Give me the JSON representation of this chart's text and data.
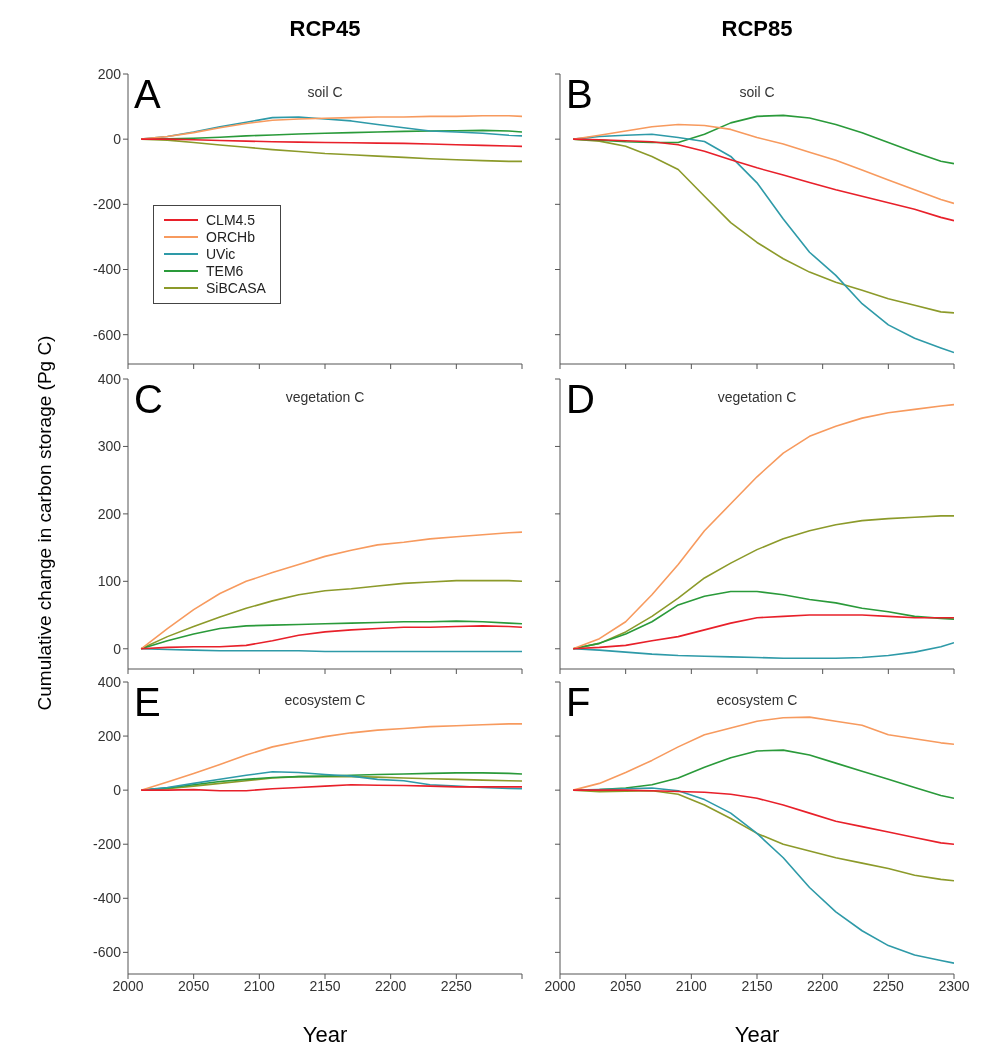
{
  "chart_data": [
    {
      "type": "line",
      "title": "RCP45",
      "subtitle": "soil C",
      "annotations": [
        "A"
      ],
      "legend": "bottom left",
      "tick_labels": "y",
      "x": [
        2010,
        2030,
        2050,
        2070,
        2090,
        2110,
        2130,
        2150,
        2170,
        2190,
        2210,
        2230,
        2250,
        2270,
        2290,
        2300
      ],
      "xlim": [
        2000,
        2300
      ],
      "xticks": [
        2000,
        2050,
        2100,
        2150,
        2200,
        2250,
        2300
      ],
      "ylim": [
        -690,
        200
      ],
      "yticks": [
        200,
        0,
        -200,
        -400,
        -600
      ],
      "series": [
        {
          "name": "CLM4.5",
          "color": "#e8202a",
          "values": [
            0,
            0,
            -2,
            -4,
            -6,
            -8,
            -9,
            -10,
            -11,
            -12,
            -13,
            -15,
            -17,
            -19,
            -21,
            -22
          ]
        },
        {
          "name": "ORCHb",
          "color": "#f79a5e",
          "values": [
            0,
            8,
            20,
            35,
            48,
            58,
            62,
            64,
            66,
            68,
            68,
            70,
            70,
            72,
            72,
            70
          ]
        },
        {
          "name": "UVic",
          "color": "#2e9aa8",
          "values": [
            0,
            8,
            22,
            38,
            52,
            66,
            68,
            62,
            56,
            45,
            35,
            25,
            22,
            18,
            12,
            10
          ]
        },
        {
          "name": "TEM6",
          "color": "#2a9a3a",
          "values": [
            0,
            1,
            3,
            6,
            10,
            13,
            16,
            18,
            20,
            22,
            24,
            25,
            26,
            27,
            25,
            22
          ]
        },
        {
          "name": "SiBCASA",
          "color": "#8c9a2a",
          "values": [
            0,
            -3,
            -10,
            -18,
            -25,
            -32,
            -38,
            -44,
            -48,
            -52,
            -56,
            -60,
            -63,
            -66,
            -68,
            -68
          ]
        }
      ]
    },
    {
      "type": "line",
      "title": "RCP85",
      "subtitle": "soil C",
      "annotations": [
        "B"
      ],
      "tick_labels": false,
      "x": [
        2010,
        2030,
        2050,
        2070,
        2090,
        2110,
        2130,
        2150,
        2170,
        2190,
        2210,
        2230,
        2250,
        2270,
        2290,
        2300
      ],
      "xlim": [
        2000,
        2300
      ],
      "xticks": [
        2000,
        2050,
        2100,
        2150,
        2200,
        2250,
        2300
      ],
      "ylim": [
        -690,
        200
      ],
      "yticks": [
        200,
        0,
        -200,
        -400,
        -600
      ],
      "series": [
        {
          "color": "#e8202a",
          "values": [
            0,
            -2,
            -5,
            -8,
            -17,
            -37,
            -63,
            -88,
            -110,
            -133,
            -155,
            -175,
            -195,
            -215,
            -240,
            -250
          ]
        },
        {
          "color": "#f79a5e",
          "values": [
            0,
            12,
            25,
            38,
            45,
            42,
            30,
            5,
            -15,
            -40,
            -65,
            -95,
            -125,
            -155,
            -185,
            -197
          ]
        },
        {
          "color": "#2e9aa8",
          "values": [
            0,
            8,
            12,
            15,
            5,
            -7,
            -53,
            -134,
            -245,
            -347,
            -418,
            -505,
            -570,
            -611,
            -641,
            -655
          ]
        },
        {
          "color": "#2a9a3a",
          "values": [
            0,
            -3,
            -8,
            -10,
            -10,
            15,
            50,
            70,
            73,
            65,
            45,
            20,
            -10,
            -40,
            -68,
            -75
          ]
        },
        {
          "color": "#8c9a2a",
          "values": [
            0,
            -6,
            -22,
            -53,
            -93,
            -175,
            -256,
            -317,
            -367,
            -408,
            -439,
            -464,
            -490,
            -510,
            -530,
            -533
          ]
        }
      ]
    },
    {
      "type": "line",
      "subtitle": "vegetation C",
      "ylabel": "Cumulative change in carbon storage (Pg C)",
      "annotations": [
        "C"
      ],
      "tick_labels": "y",
      "x": [
        2010,
        2030,
        2050,
        2070,
        2090,
        2110,
        2130,
        2150,
        2170,
        2190,
        2210,
        2230,
        2250,
        2270,
        2290,
        2300
      ],
      "xlim": [
        2000,
        2300
      ],
      "xticks": [
        2000,
        2050,
        2100,
        2150,
        2200,
        2250,
        2300
      ],
      "ylim": [
        -30,
        400
      ],
      "yticks": [
        0,
        100,
        200,
        300,
        400
      ],
      "series": [
        {
          "color": "#e8202a",
          "values": [
            0,
            2,
            3,
            3,
            5,
            12,
            20,
            25,
            28,
            30,
            32,
            32,
            33,
            34,
            33,
            32
          ]
        },
        {
          "color": "#f79a5e",
          "values": [
            0,
            30,
            58,
            82,
            100,
            113,
            125,
            137,
            146,
            154,
            158,
            163,
            166,
            169,
            172,
            173
          ]
        },
        {
          "color": "#2e9aa8",
          "values": [
            0,
            -1,
            -2,
            -3,
            -3,
            -3,
            -3,
            -4,
            -4,
            -4,
            -4,
            -4,
            -4,
            -4,
            -4,
            -4
          ]
        },
        {
          "color": "#2a9a3a",
          "values": [
            0,
            12,
            22,
            30,
            34,
            35,
            36,
            37,
            38,
            39,
            40,
            40,
            41,
            40,
            38,
            37
          ]
        },
        {
          "color": "#8c9a2a",
          "values": [
            0,
            18,
            33,
            47,
            60,
            71,
            80,
            86,
            89,
            93,
            97,
            99,
            101,
            101,
            101,
            100
          ]
        }
      ]
    },
    {
      "type": "line",
      "subtitle": "vegetation C",
      "annotations": [
        "D"
      ],
      "tick_labels": false,
      "x": [
        2010,
        2030,
        2050,
        2070,
        2090,
        2110,
        2130,
        2150,
        2170,
        2190,
        2210,
        2230,
        2250,
        2270,
        2290,
        2300
      ],
      "xlim": [
        2000,
        2300
      ],
      "xticks": [
        2000,
        2050,
        2100,
        2150,
        2200,
        2250,
        2300
      ],
      "ylim": [
        -30,
        400
      ],
      "yticks": [
        0,
        100,
        200,
        300,
        400
      ],
      "series": [
        {
          "color": "#e8202a",
          "values": [
            0,
            2,
            5,
            12,
            18,
            28,
            38,
            46,
            48,
            50,
            50,
            50,
            48,
            46,
            46,
            46
          ]
        },
        {
          "color": "#f79a5e",
          "values": [
            0,
            15,
            40,
            80,
            125,
            175,
            215,
            255,
            290,
            315,
            330,
            342,
            350,
            355,
            360,
            362
          ]
        },
        {
          "color": "#2e9aa8",
          "values": [
            0,
            -2,
            -5,
            -8,
            -10,
            -11,
            -12,
            -13,
            -14,
            -14,
            -14,
            -13,
            -10,
            -5,
            3,
            9
          ]
        },
        {
          "color": "#2a9a3a",
          "values": [
            0,
            8,
            22,
            40,
            65,
            78,
            85,
            85,
            80,
            73,
            68,
            60,
            55,
            48,
            45,
            44
          ]
        },
        {
          "color": "#8c9a2a",
          "values": [
            0,
            8,
            25,
            48,
            75,
            105,
            127,
            147,
            163,
            175,
            184,
            190,
            193,
            195,
            197,
            197
          ]
        }
      ]
    },
    {
      "type": "line",
      "subtitle": "ecosystem C",
      "xlabel": "Year",
      "annotations": [
        "E"
      ],
      "x": [
        2010,
        2030,
        2050,
        2070,
        2090,
        2110,
        2130,
        2150,
        2170,
        2190,
        2210,
        2230,
        2250,
        2270,
        2290,
        2300
      ],
      "xlim": [
        2000,
        2300
      ],
      "xticks": [
        2000,
        2050,
        2100,
        2150,
        2200,
        2250,
        {
          "value": 2300,
          "label": null
        }
      ],
      "ylim": [
        -680,
        400
      ],
      "yticks": [
        400,
        200,
        0,
        -200,
        -400,
        -600
      ],
      "series": [
        {
          "color": "#e8202a",
          "values": [
            0,
            0,
            2,
            -2,
            -2,
            5,
            10,
            15,
            20,
            18,
            17,
            15,
            12,
            12,
            12,
            12
          ]
        },
        {
          "color": "#f79a5e",
          "values": [
            0,
            30,
            62,
            95,
            130,
            160,
            180,
            198,
            212,
            222,
            228,
            235,
            238,
            242,
            245,
            245
          ]
        },
        {
          "color": "#2e9aa8",
          "values": [
            0,
            10,
            25,
            40,
            55,
            68,
            65,
            58,
            52,
            40,
            35,
            20,
            15,
            10,
            6,
            5
          ]
        },
        {
          "color": "#2a9a3a",
          "values": [
            0,
            8,
            20,
            32,
            40,
            47,
            50,
            52,
            55,
            58,
            60,
            62,
            64,
            64,
            62,
            60
          ]
        },
        {
          "color": "#8c9a2a",
          "values": [
            0,
            5,
            15,
            25,
            35,
            45,
            50,
            50,
            50,
            48,
            45,
            42,
            40,
            37,
            35,
            34
          ]
        }
      ]
    },
    {
      "type": "line",
      "subtitle": "ecosystem C",
      "xlabel": "Year",
      "annotations": [
        "F"
      ],
      "tick_labels": "x",
      "x": [
        2010,
        2030,
        2050,
        2070,
        2090,
        2110,
        2130,
        2150,
        2170,
        2190,
        2210,
        2230,
        2250,
        2270,
        2290,
        2300
      ],
      "xlim": [
        2000,
        2300
      ],
      "xticks": [
        2000,
        2050,
        2100,
        2150,
        2200,
        2250,
        2300
      ],
      "ylim": [
        -680,
        400
      ],
      "yticks": [
        400,
        200,
        0,
        -200,
        -400,
        -600
      ],
      "series": [
        {
          "color": "#e8202a",
          "values": [
            0,
            0,
            0,
            -2,
            -5,
            -8,
            -15,
            -30,
            -55,
            -85,
            -115,
            -135,
            -155,
            -175,
            -195,
            -200
          ]
        },
        {
          "color": "#f79a5e",
          "values": [
            0,
            25,
            65,
            110,
            160,
            205,
            230,
            255,
            268,
            270,
            255,
            240,
            205,
            190,
            175,
            170
          ]
        },
        {
          "color": "#2e9aa8",
          "values": [
            0,
            2,
            5,
            8,
            -2,
            -35,
            -85,
            -160,
            -250,
            -360,
            -450,
            -520,
            -575,
            -610,
            -630,
            -640
          ]
        },
        {
          "color": "#2a9a3a",
          "values": [
            0,
            2,
            8,
            20,
            45,
            85,
            120,
            145,
            148,
            130,
            100,
            70,
            40,
            10,
            -20,
            -30
          ]
        },
        {
          "color": "#8c9a2a",
          "values": [
            0,
            -6,
            -4,
            -2,
            -15,
            -55,
            -105,
            -160,
            -200,
            -225,
            -250,
            -270,
            -290,
            -315,
            -330,
            -335
          ]
        }
      ]
    }
  ]
}
